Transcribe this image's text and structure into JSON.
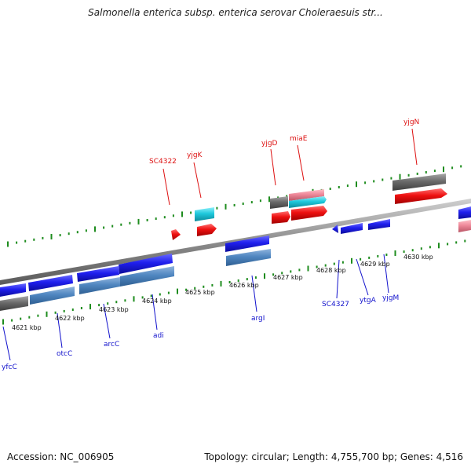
{
  "title": "Salmonella enterica subsp. enterica serovar Choleraesuis str...",
  "footer": {
    "accession": "Accession: NC_006905",
    "summary": "Topology: circular; Length: 4,755,700 bp; Genes: 4,516"
  },
  "colors": {
    "backbone": "#8c8c8c",
    "tick": "#1e8c1e",
    "plus_label": "#dd1111",
    "minus_label": "#1111cc",
    "blue_feature": "#1f1fee",
    "steelblue_feature": "#4f86c0",
    "red_feature": "#ee1111",
    "gray_feature": "#6b6b6b",
    "cyan_feature": "#1ec8dc",
    "pink_feature": "#ee8899"
  },
  "diagram": {
    "axis_labels": [
      "4621 kbp",
      "4622 kbp",
      "4623 kbp",
      "4624 kbp",
      "4625 kbp",
      "4626 kbp",
      "4627 kbp",
      "4628 kbp",
      "4629 kbp",
      "4630 kbp"
    ],
    "plus_genes": [
      "SC4322",
      "yjgK",
      "yjgD",
      "miaE",
      "yjgN"
    ],
    "minus_genes": [
      "yfcC",
      "otcC",
      "arcC",
      "adi",
      "argI",
      "SC4327",
      "ytgA",
      "yjgM"
    ]
  }
}
